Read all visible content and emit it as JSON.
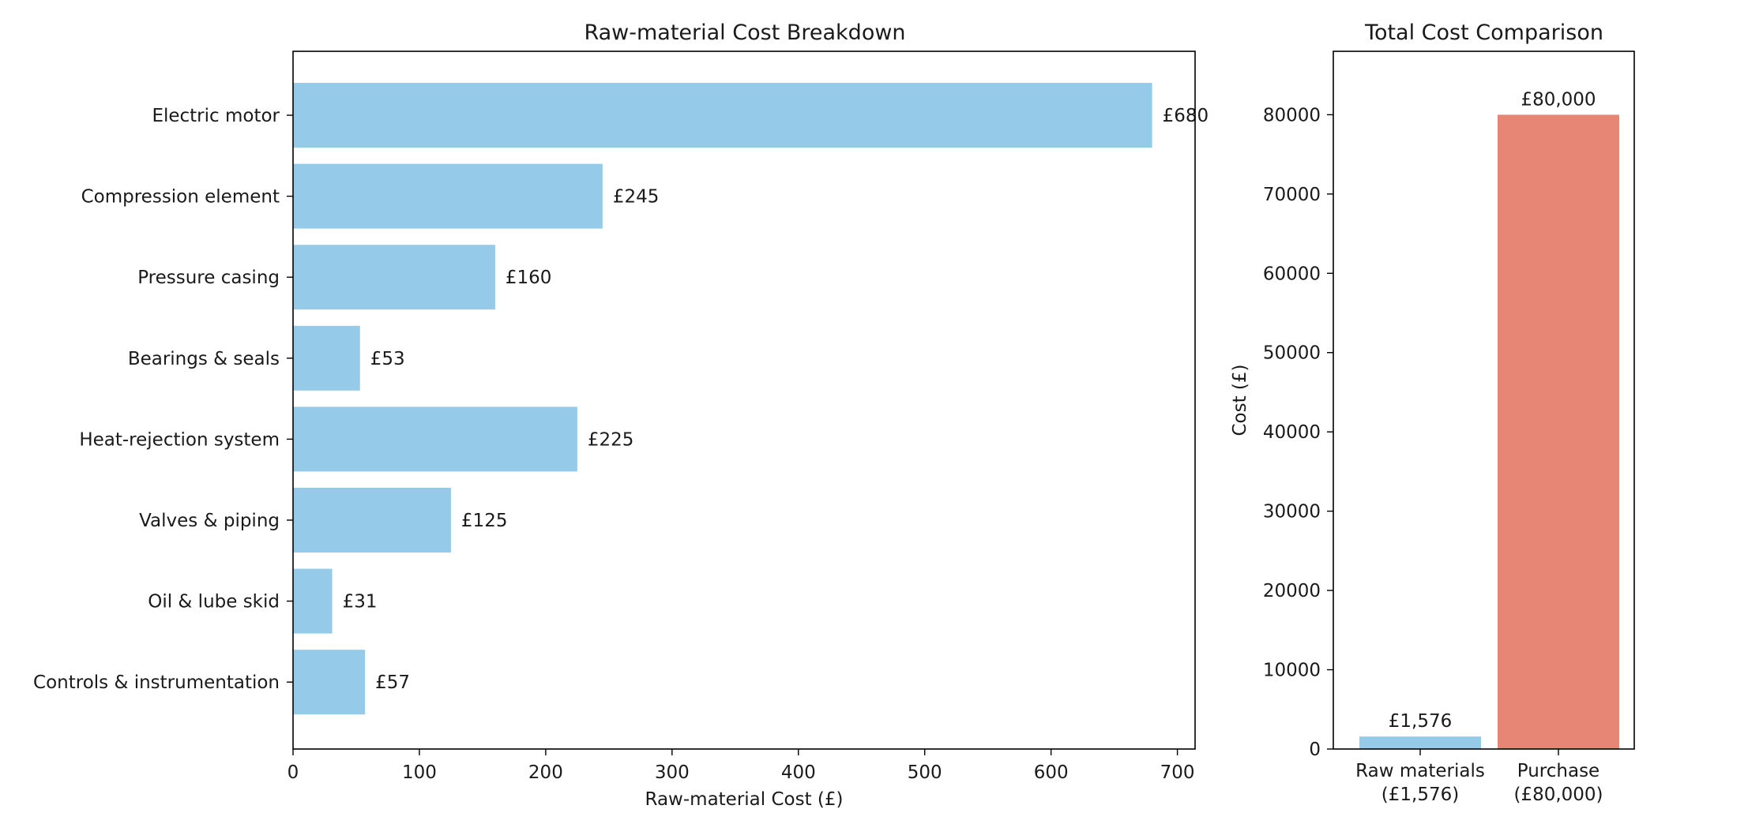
{
  "chart_data": [
    {
      "type": "bar",
      "orientation": "horizontal",
      "title": "Raw-material Cost Breakdown",
      "xlabel": "Raw-material Cost (£)",
      "ylabel": "",
      "categories": [
        "Electric motor",
        "Compression element",
        "Pressure casing",
        "Bearings & seals",
        "Heat-rejection system",
        "Valves & piping",
        "Oil & lube skid",
        "Controls & instrumentation"
      ],
      "values": [
        680,
        245,
        160,
        53,
        225,
        125,
        31,
        57
      ],
      "value_labels": [
        "£680",
        "£245",
        "£160",
        "£53",
        "£225",
        "£125",
        "£31",
        "£57"
      ],
      "xlim": [
        0,
        714
      ],
      "xticks": [
        0,
        100,
        200,
        300,
        400,
        500,
        600,
        700
      ],
      "xtick_labels": [
        "0",
        "100",
        "200",
        "300",
        "400",
        "500",
        "600",
        "700"
      ],
      "color": "#95cbe8",
      "grid": false
    },
    {
      "type": "bar",
      "orientation": "vertical",
      "title": "Total Cost Comparison",
      "xlabel": "",
      "ylabel": "Cost (£)",
      "categories": [
        "Raw materials",
        "Purchase"
      ],
      "category_sublabels": [
        "(£1,576)",
        "(£80,000)"
      ],
      "values": [
        1576,
        80000
      ],
      "value_labels": [
        "£1,576",
        "£80,000"
      ],
      "colors": [
        "#95cbe8",
        "#e88676"
      ],
      "ylim": [
        0,
        88000
      ],
      "yticks": [
        0,
        10000,
        20000,
        30000,
        40000,
        50000,
        60000,
        70000,
        80000
      ],
      "ytick_labels": [
        "0",
        "10000",
        "20000",
        "30000",
        "40000",
        "50000",
        "60000",
        "70000",
        "80000"
      ],
      "grid": false
    }
  ]
}
